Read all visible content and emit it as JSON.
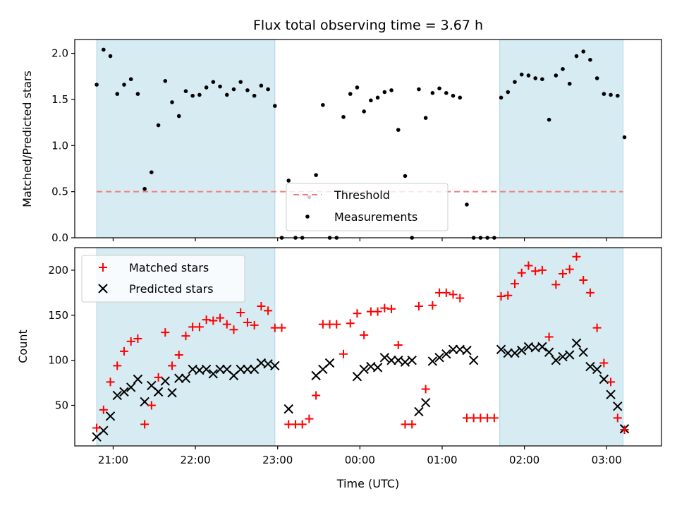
{
  "chart_data": [
    {
      "type": "scatter",
      "title": "Flux total observing time = 3.67 h",
      "xlabel": "",
      "ylabel": "Matched/Predicted stars",
      "ylim": [
        0,
        2.15
      ],
      "yticks": [
        "0.0",
        "0.5",
        "1.0",
        "1.5",
        "2.0"
      ],
      "xlim": [
        "20:32",
        "03:40"
      ],
      "shaded_intervals": [
        [
          "20:48",
          "22:58"
        ],
        [
          "01:42",
          "03:12"
        ]
      ],
      "shade_color": "#add8e6",
      "threshold": {
        "name": "Threshold",
        "value": 0.5,
        "color": "#f08080",
        "style": "dashed"
      },
      "legend": {
        "position": "lower center",
        "entries": [
          "Threshold",
          "Measurements"
        ]
      },
      "series": [
        {
          "name": "Measurements",
          "marker": "dot",
          "color": "#000000",
          "x": [
            "20:48",
            "20:53",
            "20:58",
            "21:03",
            "21:08",
            "21:13",
            "21:18",
            "21:23",
            "21:28",
            "21:33",
            "21:38",
            "21:43",
            "21:48",
            "21:53",
            "21:58",
            "22:03",
            "22:08",
            "22:13",
            "22:18",
            "22:23",
            "22:28",
            "22:33",
            "22:38",
            "22:43",
            "22:48",
            "22:53",
            "22:58",
            "23:03",
            "23:08",
            "23:13",
            "23:18",
            "23:23",
            "23:28",
            "23:33",
            "23:38",
            "23:43",
            "23:48",
            "23:53",
            "23:58",
            "00:03",
            "00:08",
            "00:13",
            "00:18",
            "00:23",
            "00:28",
            "00:33",
            "00:38",
            "00:43",
            "00:48",
            "00:53",
            "00:58",
            "01:03",
            "01:08",
            "01:13",
            "01:18",
            "01:23",
            "01:28",
            "01:33",
            "01:38",
            "01:43",
            "01:48",
            "01:53",
            "01:58",
            "02:03",
            "02:08",
            "02:13",
            "02:18",
            "02:23",
            "02:28",
            "02:33",
            "02:38",
            "02:43",
            "02:48",
            "02:53",
            "02:58",
            "03:03",
            "03:08",
            "03:13"
          ],
          "y": [
            1.66,
            2.04,
            1.97,
            1.56,
            1.66,
            1.72,
            1.56,
            0.53,
            0.71,
            1.22,
            1.7,
            1.47,
            1.32,
            1.59,
            1.54,
            1.55,
            1.63,
            1.69,
            1.64,
            1.55,
            1.61,
            1.69,
            1.6,
            1.54,
            1.65,
            1.61,
            1.43,
            0.0,
            0.62,
            0.0,
            0.0,
            0.44,
            0.68,
            1.44,
            0.0,
            0.0,
            1.31,
            1.56,
            1.63,
            1.37,
            1.49,
            1.52,
            1.58,
            1.6,
            1.17,
            0.67,
            0.0,
            1.61,
            1.3,
            1.57,
            1.62,
            1.57,
            1.54,
            1.52,
            0.36,
            0.0,
            0.0,
            0.0,
            0.0,
            1.52,
            1.58,
            1.69,
            1.77,
            1.76,
            1.73,
            1.72,
            1.28,
            1.76,
            1.83,
            1.67,
            1.97,
            2.02,
            1.93,
            1.73,
            1.56,
            1.55,
            1.54,
            1.09
          ]
        }
      ]
    },
    {
      "type": "scatter",
      "title": "",
      "xlabel": "Time (UTC)",
      "ylabel": "Count",
      "ylim": [
        5,
        225
      ],
      "yticks": [
        "50",
        "100",
        "150",
        "200"
      ],
      "xlim": [
        "20:32",
        "03:40"
      ],
      "xticks": [
        "21:00",
        "22:00",
        "23:00",
        "00:00",
        "01:00",
        "02:00",
        "03:00"
      ],
      "shaded_intervals": [
        [
          "20:48",
          "22:58"
        ],
        [
          "01:42",
          "03:12"
        ]
      ],
      "shade_color": "#add8e6",
      "legend": {
        "position": "upper left",
        "entries": [
          "Matched stars",
          "Predicted stars"
        ]
      },
      "series": [
        {
          "name": "Matched stars",
          "marker": "plus",
          "color": "#ff0000",
          "x": [
            "20:48",
            "20:53",
            "20:58",
            "21:03",
            "21:08",
            "21:13",
            "21:18",
            "21:23",
            "21:28",
            "21:33",
            "21:38",
            "21:43",
            "21:48",
            "21:53",
            "21:58",
            "22:03",
            "22:08",
            "22:13",
            "22:18",
            "22:23",
            "22:28",
            "22:33",
            "22:38",
            "22:43",
            "22:48",
            "22:53",
            "22:58",
            "23:03",
            "23:08",
            "23:13",
            "23:18",
            "23:23",
            "23:28",
            "23:33",
            "23:38",
            "23:43",
            "23:48",
            "23:53",
            "23:58",
            "00:03",
            "00:08",
            "00:13",
            "00:18",
            "00:23",
            "00:28",
            "00:33",
            "00:38",
            "00:43",
            "00:48",
            "00:53",
            "00:58",
            "01:03",
            "01:08",
            "01:13",
            "01:18",
            "01:23",
            "01:28",
            "01:33",
            "01:38",
            "01:43",
            "01:48",
            "01:53",
            "01:58",
            "02:03",
            "02:08",
            "02:13",
            "02:18",
            "02:23",
            "02:28",
            "02:33",
            "02:38",
            "02:43",
            "02:48",
            "02:53",
            "02:58",
            "03:03",
            "03:08",
            "03:13"
          ],
          "y": [
            25,
            45,
            76,
            94,
            110,
            121,
            124,
            29,
            50,
            81,
            131,
            94,
            106,
            127,
            137,
            137,
            145,
            144,
            147,
            140,
            134,
            153,
            142,
            139,
            160,
            155,
            136,
            136,
            29,
            29,
            29,
            35,
            61,
            140,
            140,
            140,
            107,
            141,
            152,
            128,
            154,
            154,
            158,
            157,
            117,
            29,
            29,
            160,
            68,
            161,
            175,
            175,
            173,
            169,
            36,
            36,
            36,
            36,
            36,
            171,
            172,
            185,
            197,
            205,
            199,
            200,
            126,
            184,
            196,
            201,
            215,
            189,
            175,
            136,
            97,
            76,
            36,
            23
          ]
        },
        {
          "name": "Predicted stars",
          "marker": "x",
          "color": "#000000",
          "x": [
            "20:48",
            "20:53",
            "20:58",
            "21:03",
            "21:08",
            "21:13",
            "21:18",
            "21:23",
            "21:28",
            "21:33",
            "21:38",
            "21:43",
            "21:48",
            "21:53",
            "21:58",
            "22:03",
            "22:08",
            "22:13",
            "22:18",
            "22:23",
            "22:28",
            "22:33",
            "22:38",
            "22:43",
            "22:48",
            "22:53",
            "22:58",
            "23:08",
            "23:28",
            "23:33",
            "23:38",
            "23:58",
            "24:03",
            "24:08",
            "24:13",
            "24:18",
            "24:23",
            "24:28",
            "24:33",
            "24:38",
            "24:43",
            "24:48",
            "24:53",
            "24:58",
            "25:03",
            "25:08",
            "25:13",
            "25:18",
            "25:23",
            "25:43",
            "25:48",
            "25:53",
            "25:58",
            "26:03",
            "26:08",
            "26:13",
            "26:18",
            "26:23",
            "26:28",
            "26:33",
            "26:38",
            "26:43",
            "26:48",
            "26:53",
            "26:58",
            "27:03",
            "27:08",
            "27:13"
          ],
          "y": [
            15,
            22,
            38,
            61,
            65,
            70,
            79,
            54,
            72,
            65,
            77,
            64,
            80,
            80,
            90,
            89,
            90,
            85,
            90,
            90,
            83,
            90,
            90,
            90,
            97,
            96,
            94,
            46,
            83,
            90,
            97,
            82,
            90,
            93,
            92,
            103,
            100,
            100,
            98,
            100,
            43,
            53,
            99,
            103,
            107,
            112,
            112,
            111,
            100,
            112,
            108,
            108,
            111,
            115,
            114,
            115,
            109,
            100,
            104,
            106,
            119,
            109,
            93,
            90,
            79,
            62,
            49,
            24
          ]
        }
      ]
    }
  ]
}
